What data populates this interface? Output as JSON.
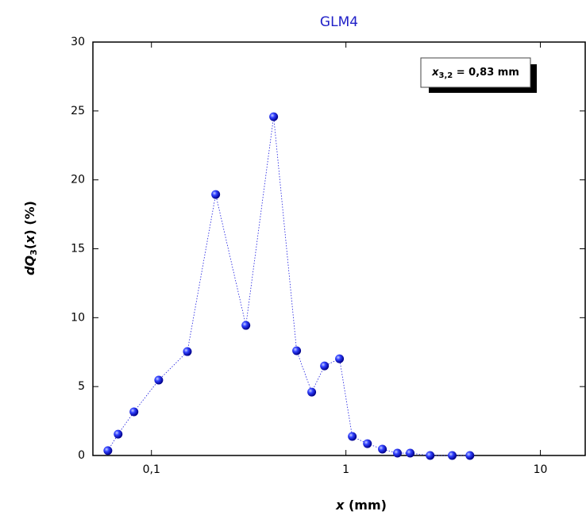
{
  "chart_data": {
    "type": "line",
    "title": "GLM4",
    "x_label": [
      "x",
      " (mm)"
    ],
    "y_label": [
      "dQ",
      "3",
      "(",
      "x",
      ") (%)"
    ],
    "annotation": [
      "x",
      "3,2",
      " = 0,83 mm"
    ],
    "x": [
      0.0597,
      0.0674,
      0.0813,
      0.109,
      0.153,
      0.214,
      0.306,
      0.425,
      0.558,
      0.667,
      0.776,
      0.927,
      1.078,
      1.29,
      1.54,
      1.84,
      2.14,
      2.71,
      3.52,
      4.34
    ],
    "series": [
      {
        "color": "#1a1adf",
        "values": [
          0.35,
          1.55,
          3.17,
          5.47,
          7.54,
          18.94,
          9.44,
          24.58,
          7.6,
          4.6,
          6.5,
          7.02,
          1.38,
          0.86,
          0.46,
          0.17,
          0.17,
          0,
          0,
          0
        ]
      }
    ],
    "xlim": [
      0.05,
      17
    ],
    "ylim": [
      0,
      30
    ],
    "xscale": "log",
    "xticks": [
      {
        "value": 0.1,
        "label": "0,1"
      },
      1,
      10
    ],
    "yticks": [
      0,
      5,
      10,
      15,
      20,
      25,
      30
    ],
    "grid": false
  }
}
